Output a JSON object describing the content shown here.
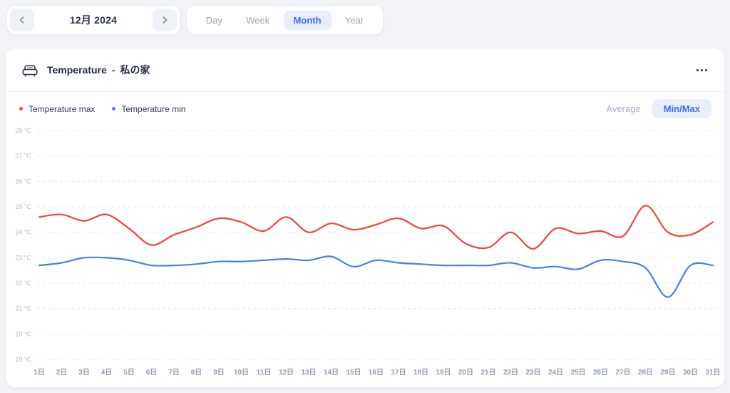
{
  "nav": {
    "date_label": "12月 2024",
    "tabs": [
      {
        "label": "Day",
        "active": false
      },
      {
        "label": "Week",
        "active": false
      },
      {
        "label": "Month",
        "active": true
      },
      {
        "label": "Year",
        "active": false
      }
    ]
  },
  "card": {
    "title": "Temperature",
    "separator": "-",
    "location": "私の家",
    "modes": [
      {
        "label": "Average",
        "active": false
      },
      {
        "label": "Min/Max",
        "active": true
      }
    ]
  },
  "colors": {
    "accent_blue": "#3b6ef5",
    "accent_blue_bg": "#e7edfc",
    "series_max_red": "#f4433c",
    "series_min_blue": "#4a7df3",
    "page_bg": "#f1f3f7",
    "grid_line": "#e7e9ee"
  },
  "chart_data": {
    "type": "line",
    "title": "Temperature - 私の家 (December 2024, daily min/max)",
    "categories": [
      "1日",
      "2日",
      "3日",
      "4日",
      "5日",
      "6日",
      "7日",
      "8日",
      "9日",
      "10日",
      "11日",
      "12日",
      "13日",
      "14日",
      "15日",
      "16日",
      "17日",
      "18日",
      "19日",
      "20日",
      "21日",
      "22日",
      "23日",
      "24日",
      "25日",
      "26日",
      "27日",
      "28日",
      "29日",
      "30日",
      "31日"
    ],
    "series": [
      {
        "name": "Temperature max",
        "color": "#f4433c",
        "values": [
          24.6,
          24.7,
          24.45,
          24.7,
          24.15,
          23.5,
          23.9,
          24.2,
          24.55,
          24.4,
          24.05,
          24.6,
          24.0,
          24.35,
          24.1,
          24.3,
          24.55,
          24.15,
          24.25,
          23.55,
          23.4,
          24.0,
          23.35,
          24.15,
          23.95,
          24.05,
          23.85,
          25.05,
          24.0,
          23.9,
          24.4
        ]
      },
      {
        "name": "Temperature min",
        "color": "#4a7df3",
        "values": [
          22.7,
          22.8,
          23.0,
          23.0,
          22.9,
          22.7,
          22.7,
          22.75,
          22.85,
          22.85,
          22.9,
          22.95,
          22.9,
          23.05,
          22.65,
          22.9,
          22.8,
          22.75,
          22.7,
          22.7,
          22.7,
          22.8,
          22.6,
          22.65,
          22.55,
          22.9,
          22.85,
          22.6,
          21.45,
          22.7,
          22.7
        ]
      }
    ],
    "xlabel": "",
    "ylabel": "",
    "ytick_suffix": " °C",
    "ylim": [
      19,
      28
    ],
    "ytick_step": 1,
    "grid": "horizontal dashed",
    "legend_position": "top-left"
  }
}
